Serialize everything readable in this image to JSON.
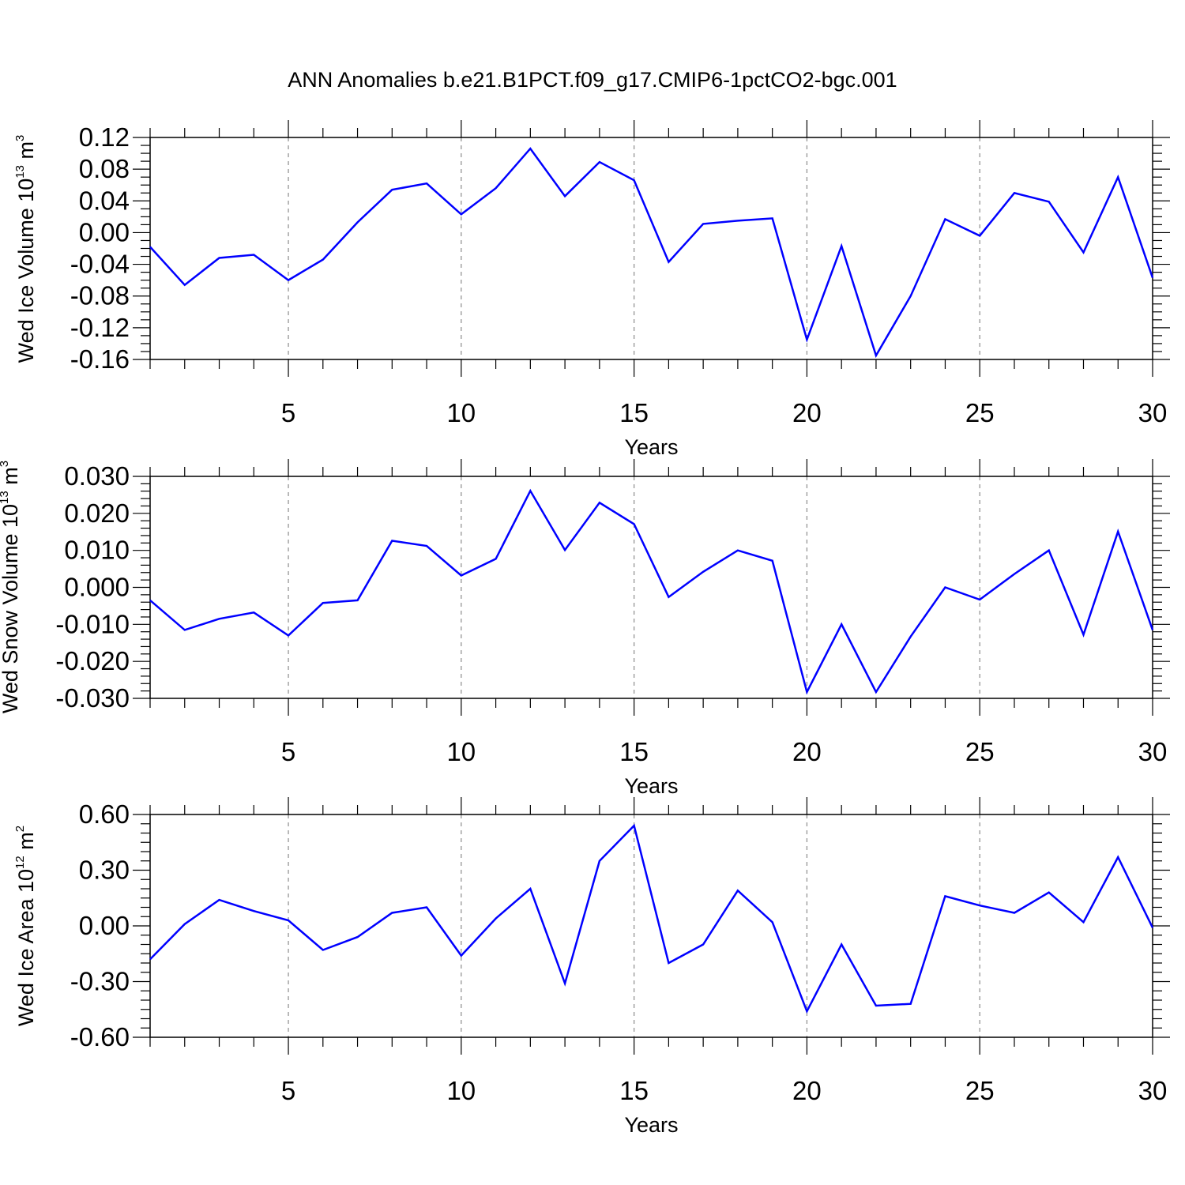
{
  "title": "ANN Anomalies b.e21.B1PCT.f09_g17.CMIP6-1pctCO2-bgc.001",
  "colors": {
    "series": "#0000ff",
    "axes": "#000000",
    "grid": "#8c8c8c"
  },
  "chart_data": [
    {
      "type": "line",
      "title": "ANN Anomalies b.e21.B1PCT.f09_g17.CMIP6-1pctCO2-bgc.001",
      "xlabel": "Years",
      "ylabel": {
        "text": "Wed Ice Volume 10",
        "exponent": "13",
        "unit": " m",
        "unit_exponent": "3"
      },
      "xlim": [
        1,
        30
      ],
      "ylim": [
        -0.16,
        0.12
      ],
      "xticks": [
        "5",
        "10",
        "15",
        "20",
        "25",
        "30"
      ],
      "yticks": [
        "0.12",
        "0.08",
        "0.04",
        "0.00",
        "-0.04",
        "-0.08",
        "-0.12",
        "-0.16"
      ],
      "grid": "vertical dashed at x = 5, 10, 15, 20, 25",
      "series": [
        {
          "x": [
            1,
            2,
            3,
            4,
            5,
            6,
            7,
            8,
            9,
            10,
            11,
            12,
            13,
            14,
            15,
            16,
            17,
            18,
            19,
            20,
            21,
            22,
            23,
            24,
            25,
            26,
            27,
            28,
            29,
            30
          ],
          "values": [
            -0.018,
            -0.066,
            -0.032,
            -0.028,
            -0.06,
            -0.034,
            0.013,
            0.054,
            0.062,
            0.023,
            0.056,
            0.106,
            0.046,
            0.089,
            0.066,
            -0.037,
            0.011,
            0.015,
            0.018,
            -0.135,
            -0.017,
            -0.155,
            -0.08,
            0.017,
            -0.004,
            0.05,
            0.039,
            -0.025,
            0.07,
            -0.057
          ]
        }
      ]
    },
    {
      "type": "line",
      "xlabel": "Years",
      "ylabel": {
        "text": "Wed Snow Volume 10",
        "exponent": "13",
        "unit": " m",
        "unit_exponent": "3"
      },
      "xlim": [
        1,
        30
      ],
      "ylim": [
        -0.03,
        0.03
      ],
      "xticks": [
        "5",
        "10",
        "15",
        "20",
        "25",
        "30"
      ],
      "yticks": [
        "0.030",
        "0.020",
        "0.010",
        "0.000",
        "-0.010",
        "-0.020",
        "-0.030"
      ],
      "grid": "vertical dashed at x = 5, 10, 15, 20, 25",
      "series": [
        {
          "x": [
            1,
            2,
            3,
            4,
            5,
            6,
            7,
            8,
            9,
            10,
            11,
            12,
            13,
            14,
            15,
            16,
            17,
            18,
            19,
            20,
            21,
            22,
            23,
            24,
            25,
            26,
            27,
            28,
            29,
            30
          ],
          "values": [
            -0.0035,
            -0.0115,
            -0.0085,
            -0.0068,
            -0.013,
            -0.0042,
            -0.0035,
            0.0126,
            0.0112,
            0.0032,
            0.0077,
            0.0261,
            0.0101,
            0.0229,
            0.0171,
            -0.0026,
            0.0042,
            0.01,
            0.0072,
            -0.0283,
            -0.01,
            -0.0283,
            -0.0133,
            0.0,
            -0.0033,
            0.0036,
            0.01,
            -0.0128,
            0.0151,
            -0.0115
          ]
        }
      ]
    },
    {
      "type": "line",
      "xlabel": "Years",
      "ylabel": {
        "text": "Wed Ice Area 10",
        "exponent": "12",
        "unit": " m",
        "unit_exponent": "2"
      },
      "xlim": [
        1,
        30
      ],
      "ylim": [
        -0.6,
        0.6
      ],
      "xticks": [
        "5",
        "10",
        "15",
        "20",
        "25",
        "30"
      ],
      "yticks": [
        "0.60",
        "0.30",
        "0.00",
        "-0.30",
        "-0.60"
      ],
      "grid": "vertical dashed at x = 5, 10, 15, 20, 25",
      "series": [
        {
          "x": [
            1,
            2,
            3,
            4,
            5,
            6,
            7,
            8,
            9,
            10,
            11,
            12,
            13,
            14,
            15,
            16,
            17,
            18,
            19,
            20,
            21,
            22,
            23,
            24,
            25,
            26,
            27,
            28,
            29,
            30
          ],
          "values": [
            -0.18,
            0.01,
            0.14,
            0.08,
            0.03,
            -0.13,
            -0.06,
            0.07,
            0.1,
            -0.16,
            0.04,
            0.2,
            -0.31,
            0.35,
            0.54,
            -0.2,
            -0.1,
            0.19,
            0.02,
            -0.46,
            -0.1,
            -0.43,
            -0.42,
            0.16,
            0.11,
            0.07,
            0.18,
            0.02,
            0.37,
            -0.01
          ]
        }
      ]
    }
  ]
}
